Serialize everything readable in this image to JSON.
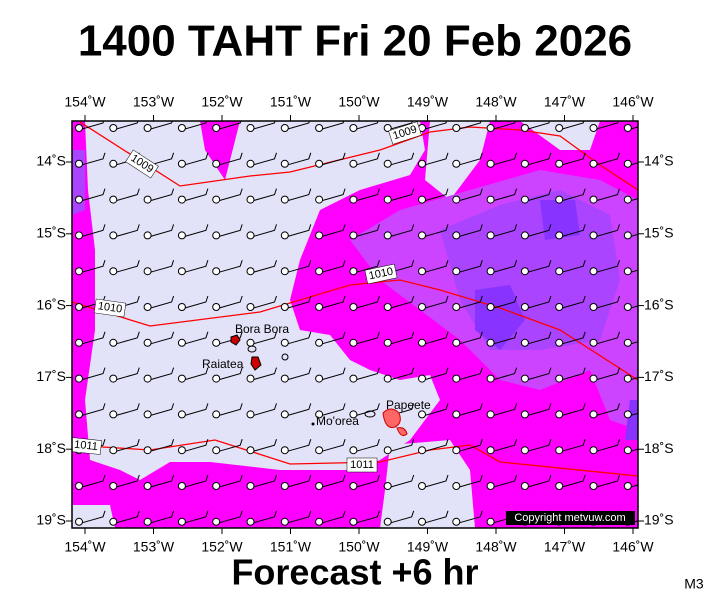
{
  "header": {
    "title": "1400 TAHT Fri 20 Feb 2026"
  },
  "axes": {
    "longitude_labels": [
      "154˚W",
      "153˚W",
      "152˚W",
      "151˚W",
      "150˚W",
      "149˚W",
      "148˚W",
      "147˚W",
      "146˚W"
    ],
    "latitude_labels": [
      "14˚S",
      "15˚S",
      "16˚S",
      "17˚S",
      "18˚S",
      "19˚S"
    ]
  },
  "places": [
    {
      "label": "Bora Bora"
    },
    {
      "label": "Raiatea"
    },
    {
      "label": "Mo'orea"
    },
    {
      "label": "Papeete"
    }
  ],
  "isobar_labels": [
    "1009",
    "1009",
    "1010",
    "1010",
    "1011",
    "1011"
  ],
  "footer": {
    "forecast": "Forecast +6 hr",
    "copyright": "Copyright metvuw.com",
    "code": "M3"
  }
}
